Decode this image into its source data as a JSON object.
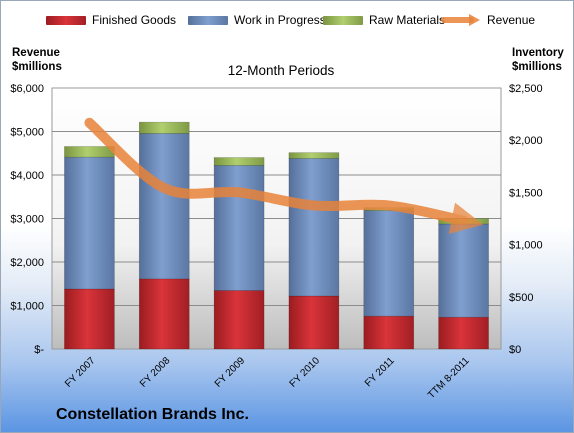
{
  "chart_data": {
    "type": "bar",
    "stacked": true,
    "company": "Constellation Brands Inc.",
    "subtitle": "12-Month Periods",
    "y_left_label": [
      "Revenue",
      "$millions"
    ],
    "y_right_label": [
      "Inventory",
      "$millions"
    ],
    "categories": [
      "FY 2007",
      "FY 2008",
      "FY 2009",
      "FY 2010",
      "FY 2011",
      "TTM 8-2011"
    ],
    "series": [
      {
        "name": "Finished Goods",
        "axis": "right",
        "color": "#c0272d",
        "values": [
          575,
          672,
          560,
          508,
          315,
          305
        ]
      },
      {
        "name": "Work in Progress",
        "axis": "right",
        "color": "#6f8fbf",
        "values": [
          1263,
          1392,
          1198,
          1317,
          1011,
          893
        ]
      },
      {
        "name": "Raw Materials",
        "axis": "right",
        "color": "#9bbb59",
        "values": [
          102,
          109,
          76,
          56,
          28,
          51
        ]
      }
    ],
    "line_series": {
      "name": "Revenue",
      "axis": "left",
      "color": "#e8833a",
      "values": [
        5200,
        3700,
        3600,
        3300,
        3300,
        2950
      ]
    },
    "y_left": {
      "min": 0,
      "max": 6000,
      "ticks": [
        0,
        1000,
        2000,
        3000,
        4000,
        5000,
        6000
      ],
      "tick_labels": [
        "$-",
        "$1,000",
        "$2,000",
        "$3,000",
        "$4,000",
        "$5,000",
        "$6,000"
      ]
    },
    "y_right": {
      "min": 0,
      "max": 2500,
      "ticks": [
        0,
        500,
        1000,
        1500,
        2000,
        2500
      ],
      "tick_labels": [
        "$0",
        "$500",
        "$1,000",
        "$1,500",
        "$2,000",
        "$2,500"
      ]
    },
    "grid": true,
    "legend_position": "top"
  }
}
